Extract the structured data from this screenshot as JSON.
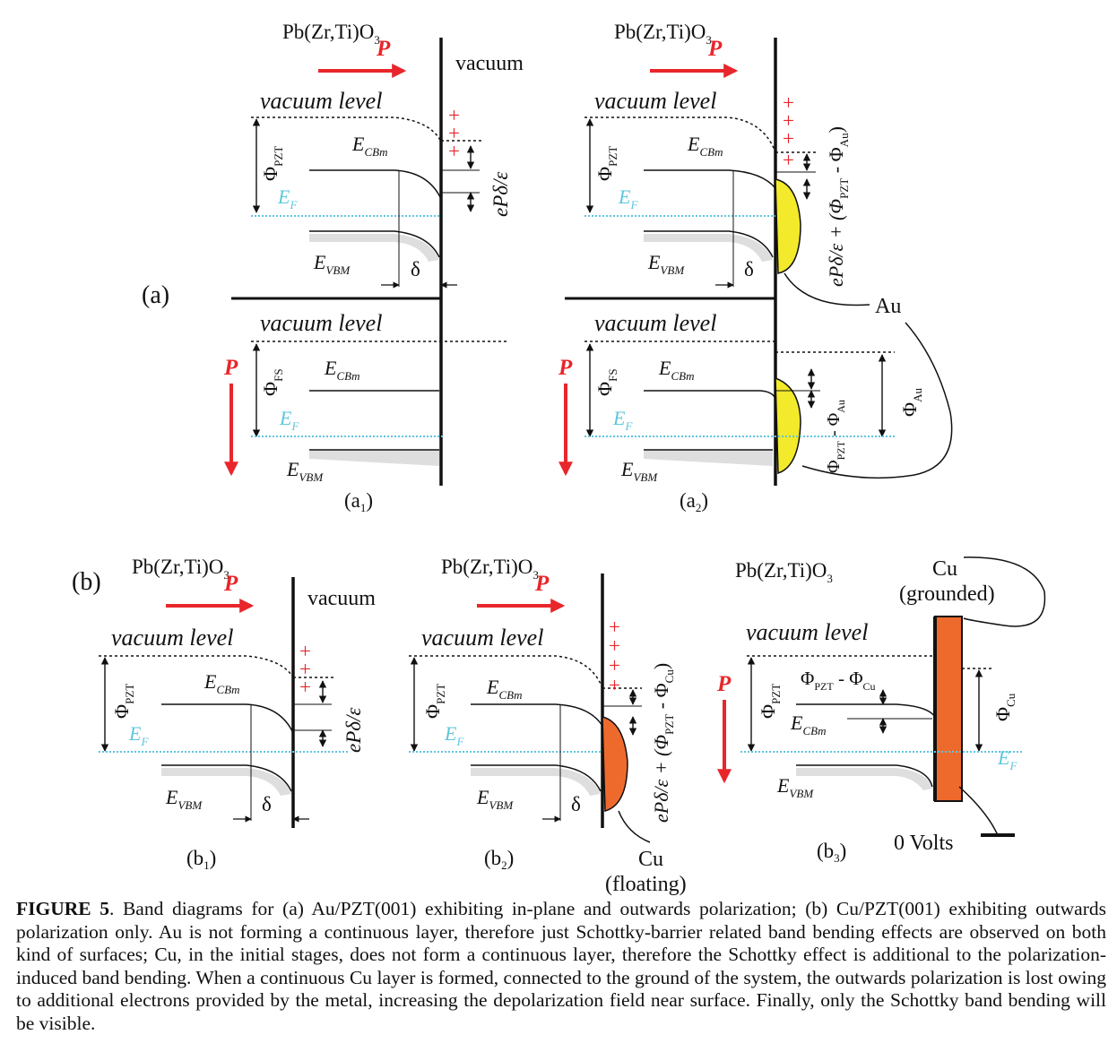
{
  "labels": {
    "material": "Pb(Zr,Ti)O",
    "material_sub": "3",
    "vacuum": "vacuum",
    "P": "P",
    "vacuum_level": "vacuum level",
    "E": "E",
    "CBm": "CBm",
    "VBM": "VBM",
    "F": "F",
    "Phi": "Φ",
    "PZT": "PZT",
    "FS": "FS",
    "Au": "Au",
    "Cu": "Cu",
    "delta": "δ",
    "plus": "+",
    "eP_eps": "ePδ/ε",
    "eP_eps_plus_Au": "ePδ/ε + (Φ",
    "eP_eps_plus_Cu": "ePδ/ε + (Φ",
    "minus_phi": " - Φ",
    "close_paren": ")",
    "zero_volts": "0 Volts",
    "cu_grounded": "(grounded)",
    "cu_floating": "(floating)"
  },
  "panels": {
    "a": "(a)",
    "b": "(b)",
    "a1": "(a",
    "a1_sub": "1",
    "a2": "(a",
    "a2_sub": "2",
    "b1": "(b",
    "b1_sub": "1",
    "b2": "(b",
    "b2_sub": "2",
    "b3": "(b",
    "b3_sub": "3",
    "close": ")"
  },
  "colors": {
    "polarization": "#e8262b",
    "fermi": "#5ec6de",
    "gold": "#f2ea2a",
    "copper": "#ee6a2c"
  },
  "caption": {
    "label": "FIGURE 5",
    "text": ". Band diagrams for (a) Au/PZT(001) exhibiting in-plane and outwards polarization; (b) Cu/PZT(001) exhibiting outwards polarization only. Au is not forming a continuous layer, therefore just Schottky-barrier related band bending effects are observed on both kind of surfaces; Cu, in the initial stages, does not form a continuous layer, therefore the Schottky effect is additional to the polarization-induced band bending. When a continuous Cu layer is formed, connected to the ground of the system, the outwards polarization is lost owing to additional electrons provided by the metal, increasing the depolarization field near surface. Finally, only the Schottky band bending will be visible."
  }
}
